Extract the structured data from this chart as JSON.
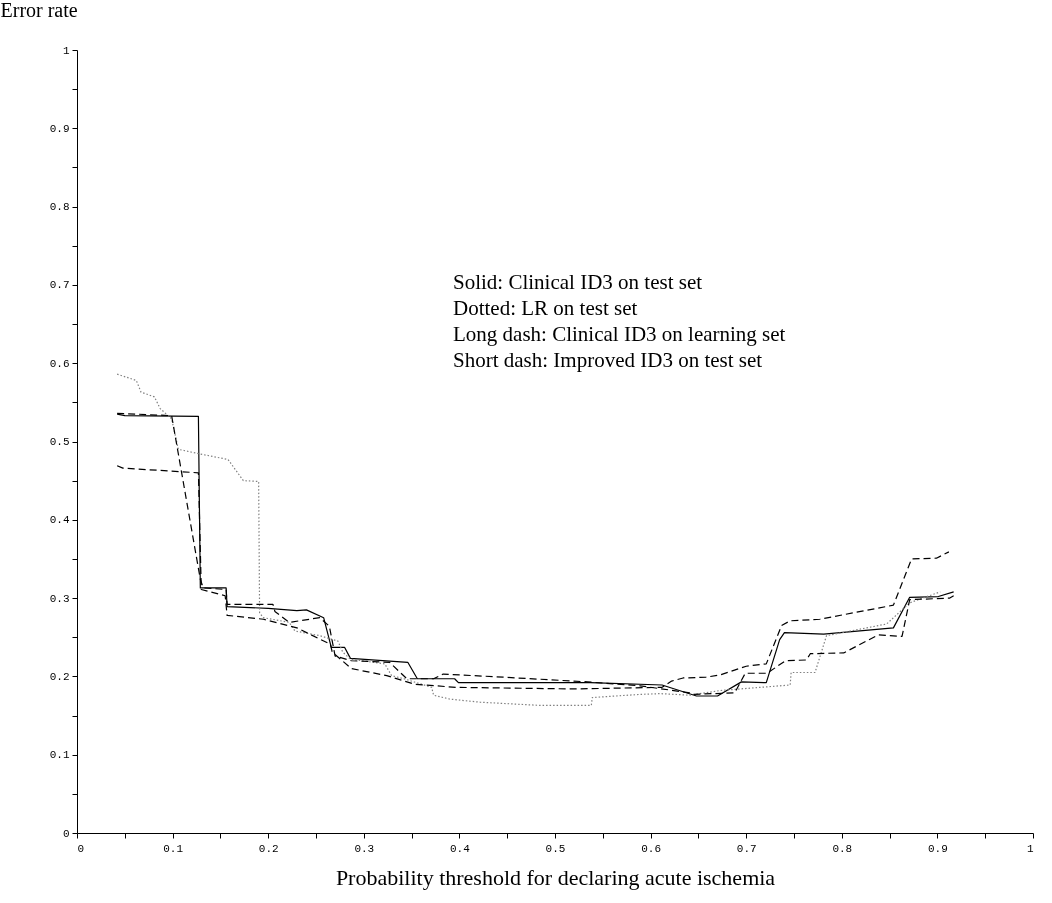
{
  "chart_data": {
    "type": "line",
    "xlabel": "Probability threshold for declaring acute ischemia",
    "ylabel": "Error rate",
    "xlim": [
      0,
      1
    ],
    "ylim": [
      0,
      1
    ],
    "xticks": [
      0,
      {
        "value": 0.05,
        "label": null
      },
      0.1,
      {
        "value": 0.15,
        "label": null
      },
      0.2,
      {
        "value": 0.25,
        "label": null
      },
      0.3,
      {
        "value": 0.35,
        "label": null
      },
      0.4,
      {
        "value": 0.45,
        "label": null
      },
      0.5,
      {
        "value": 0.55,
        "label": null
      },
      0.6,
      {
        "value": 0.65,
        "label": null
      },
      0.7,
      {
        "value": 0.75,
        "label": null
      },
      0.8,
      {
        "value": 0.85,
        "label": null
      },
      0.9,
      {
        "value": 0.95,
        "label": null
      },
      1
    ],
    "yticks": [
      0,
      {
        "value": 0.05,
        "label": null
      },
      0.1,
      {
        "value": 0.15,
        "label": null
      },
      0.2,
      {
        "value": 0.25,
        "label": null
      },
      0.3,
      {
        "value": 0.35,
        "label": null
      },
      0.4,
      {
        "value": 0.45,
        "label": null
      },
      0.5,
      {
        "value": 0.55,
        "label": null
      },
      0.6,
      {
        "value": 0.65,
        "label": null
      },
      0.7,
      {
        "value": 0.75,
        "label": null
      },
      0.8,
      {
        "value": 0.85,
        "label": null
      },
      0.9,
      {
        "value": 0.95,
        "label": null
      },
      1
    ],
    "grid": false,
    "legend": false,
    "marker": "none",
    "annotations": [
      "Solid: Clinical ID3 on test set",
      "Dotted: LR on test set",
      "Long dash: Clinical ID3 on learning set",
      "Short dash: Improved ID3 on test set"
    ],
    "series": [
      {
        "color": "#000000",
        "line_style": "solid",
        "x": [
          0.042,
          0.05,
          0.127,
          0.129,
          0.156,
          0.157,
          0.2,
          0.23,
          0.24,
          0.258,
          0.266,
          0.28,
          0.286,
          0.346,
          0.356,
          0.395,
          0.399,
          0.537,
          0.612,
          0.648,
          0.67,
          0.695,
          0.721,
          0.735,
          0.74,
          0.781,
          0.854,
          0.871,
          0.901,
          0.917
        ],
        "values": [
          0.535,
          0.533,
          0.532,
          0.313,
          0.313,
          0.289,
          0.287,
          0.284,
          0.285,
          0.275,
          0.237,
          0.237,
          0.223,
          0.218,
          0.197,
          0.197,
          0.192,
          0.192,
          0.189,
          0.175,
          0.175,
          0.193,
          0.192,
          0.247,
          0.256,
          0.254,
          0.262,
          0.301,
          0.302,
          0.308
        ]
      },
      {
        "color": "#808080",
        "line_style": "dotted",
        "x": [
          0.042,
          0.062,
          0.067,
          0.081,
          0.087,
          0.099,
          0.106,
          0.129,
          0.158,
          0.174,
          0.19,
          0.191,
          0.195,
          0.222,
          0.228,
          0.254,
          0.273,
          0.278,
          0.286,
          0.322,
          0.329,
          0.342,
          0.371,
          0.373,
          0.39,
          0.422,
          0.484,
          0.538,
          0.539,
          0.589,
          0.61,
          0.641,
          0.673,
          0.746,
          0.747,
          0.772,
          0.784,
          0.847,
          0.871,
          0.903
        ],
        "values": [
          0.586,
          0.578,
          0.563,
          0.557,
          0.542,
          0.529,
          0.49,
          0.484,
          0.477,
          0.45,
          0.449,
          0.281,
          0.275,
          0.269,
          0.258,
          0.252,
          0.245,
          0.231,
          0.222,
          0.216,
          0.201,
          0.197,
          0.186,
          0.176,
          0.171,
          0.167,
          0.163,
          0.163,
          0.173,
          0.177,
          0.178,
          0.176,
          0.182,
          0.189,
          0.205,
          0.205,
          0.252,
          0.267,
          0.294,
          0.308
        ]
      },
      {
        "color": "#000000",
        "line_style": "dashed",
        "x": [
          0.042,
          0.048,
          0.127,
          0.13,
          0.155,
          0.157,
          0.195,
          0.23,
          0.265,
          0.267,
          0.287,
          0.324,
          0.353,
          0.397,
          0.519,
          0.612,
          0.622,
          0.634,
          0.658,
          0.673,
          0.7,
          0.721,
          0.737,
          0.746,
          0.777,
          0.854,
          0.873,
          0.899,
          0.912
        ],
        "values": [
          0.469,
          0.466,
          0.46,
          0.311,
          0.303,
          0.278,
          0.273,
          0.262,
          0.241,
          0.231,
          0.21,
          0.201,
          0.19,
          0.186,
          0.184,
          0.186,
          0.194,
          0.198,
          0.199,
          0.202,
          0.213,
          0.216,
          0.265,
          0.271,
          0.273,
          0.291,
          0.35,
          0.351,
          0.359
        ]
      },
      {
        "color": "#000000",
        "line_style": "dashed",
        "x": [
          0.042,
          0.099,
          0.101,
          0.129,
          0.132,
          0.156,
          0.157,
          0.205,
          0.207,
          0.222,
          0.254,
          0.264,
          0.27,
          0.287,
          0.327,
          0.345,
          0.373,
          0.383,
          0.446,
          0.534,
          0.589,
          0.641,
          0.644,
          0.688,
          0.699,
          0.722,
          0.741,
          0.763,
          0.767,
          0.802,
          0.838,
          0.863,
          0.871,
          0.913,
          0.917
        ],
        "values": [
          0.536,
          0.533,
          0.519,
          0.324,
          0.313,
          0.311,
          0.292,
          0.292,
          0.283,
          0.269,
          0.275,
          0.264,
          0.226,
          0.22,
          0.218,
          0.197,
          0.197,
          0.203,
          0.199,
          0.193,
          0.188,
          0.179,
          0.177,
          0.179,
          0.204,
          0.204,
          0.22,
          0.221,
          0.229,
          0.23,
          0.253,
          0.251,
          0.298,
          0.3,
          0.303
        ]
      }
    ]
  }
}
